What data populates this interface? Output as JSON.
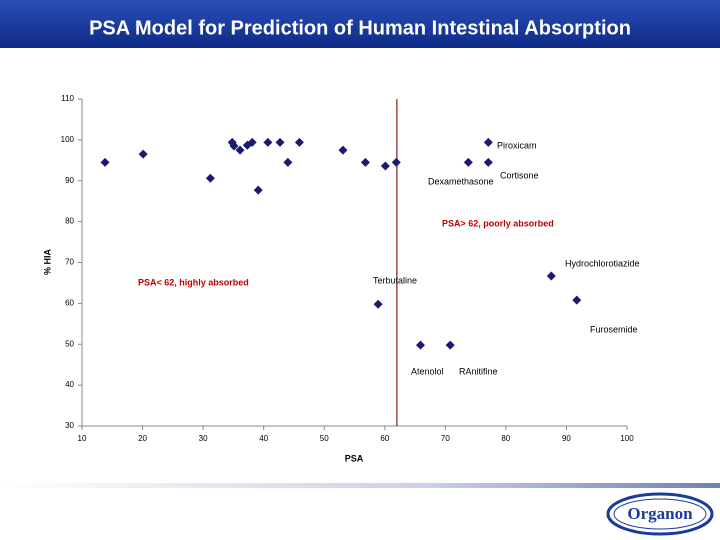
{
  "chart_data": {
    "type": "scatter",
    "title": "PSA Model for Prediction of Human Intestinal Absorption",
    "x_label": "PSA",
    "y_label": "% HIA",
    "x": [
      13.8,
      20.1,
      31.2,
      34.8,
      35.1,
      36.1,
      37.3,
      38.1,
      39.1,
      40.7,
      42.7,
      44.0,
      45.9,
      53.1,
      56.8,
      60.1,
      61.9,
      73.8,
      77.1,
      77.1,
      58.9,
      65.9,
      70.8,
      87.5,
      91.7
    ],
    "series": [
      {
        "color": "#1a1a6e",
        "values": [
          94.5,
          96.5,
          90.6,
          99.4,
          98.5,
          97.5,
          98.7,
          99.4,
          87.7,
          99.4,
          99.4,
          94.5,
          99.4,
          97.5,
          94.5,
          93.6,
          94.5,
          94.5,
          99.4,
          94.5,
          59.8,
          49.8,
          49.8,
          66.7,
          60.8
        ]
      }
    ],
    "xlim": [
      10,
      100
    ],
    "xticks": [
      10,
      20,
      30,
      40,
      50,
      60,
      70,
      80,
      90,
      100
    ],
    "ylim": [
      30,
      110
    ],
    "yticks": [
      30,
      40,
      50,
      60,
      70,
      80,
      90,
      100,
      110
    ],
    "grid": false,
    "reference_line": {
      "x": 62,
      "color": "#8b1a1a"
    },
    "annotations": [
      {
        "text": "Piroxicam",
        "color": "#000000"
      },
      {
        "text": "Cortisone",
        "color": "#000000"
      },
      {
        "text": "Dexamethasone",
        "color": "#000000"
      },
      {
        "text": "PSA> 62, poorly absorbed",
        "color": "#c00000"
      },
      {
        "text": "Hydrochlorotiazide",
        "color": "#000000"
      },
      {
        "text": "PSA< 62, highly absorbed",
        "color": "#c00000"
      },
      {
        "text": "Terbutaline",
        "color": "#000000"
      },
      {
        "text": "Furosemide",
        "color": "#000000"
      },
      {
        "text": "Atenolol",
        "color": "#000000"
      },
      {
        "text": "RAnitifine",
        "color": "#000000"
      }
    ]
  },
  "logo": "Organon"
}
